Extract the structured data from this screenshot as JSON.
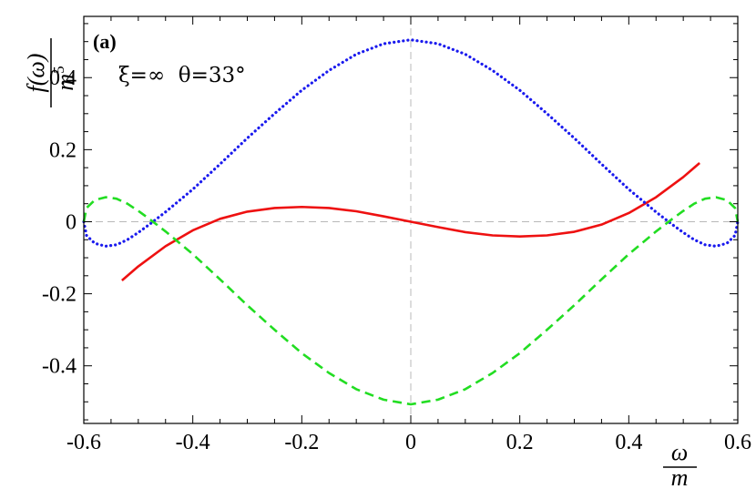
{
  "chart_data": {
    "type": "line",
    "panel_label": "(a)",
    "params_label": "ξ=∞  θ=33°",
    "ylabel_numerator": "f(ω)",
    "ylabel_denominator_base": "m",
    "ylabel_denominator_exp": "5",
    "xlabel_numerator": "ω",
    "xlabel_denominator": "m",
    "xlim": [
      -0.6,
      0.6
    ],
    "ylim": [
      -0.56,
      0.57
    ],
    "x_ticks": [
      -0.6,
      -0.4,
      -0.2,
      0,
      0.2,
      0.4,
      0.6
    ],
    "x_tick_labels": [
      "-0.6",
      "-0.4",
      "-0.2",
      "0",
      "0.2",
      "0.4",
      "0.6"
    ],
    "y_ticks": [
      -0.4,
      -0.2,
      0,
      0.2,
      0.4
    ],
    "y_tick_labels": [
      "-0.4",
      "-0.2",
      "0",
      "0.2",
      "0.4"
    ],
    "grid": false,
    "reference_lines": [
      0
    ],
    "series": [
      {
        "style": "solid",
        "color": "#ee1111",
        "points": [
          [
            -0.53,
            -0.163
          ],
          [
            -0.5,
            -0.124
          ],
          [
            -0.45,
            -0.068
          ],
          [
            -0.4,
            -0.024
          ],
          [
            -0.35,
            0.008
          ],
          [
            -0.3,
            0.028
          ],
          [
            -0.25,
            0.038
          ],
          [
            -0.2,
            0.041
          ],
          [
            -0.15,
            0.038
          ],
          [
            -0.1,
            0.029
          ],
          [
            -0.05,
            0.015
          ],
          [
            0,
            0
          ],
          [
            0.05,
            -0.015
          ],
          [
            0.1,
            -0.029
          ],
          [
            0.15,
            -0.038
          ],
          [
            0.2,
            -0.041
          ],
          [
            0.25,
            -0.038
          ],
          [
            0.3,
            -0.028
          ],
          [
            0.35,
            -0.008
          ],
          [
            0.4,
            0.024
          ],
          [
            0.45,
            0.068
          ],
          [
            0.5,
            0.124
          ],
          [
            0.53,
            0.163
          ]
        ]
      },
      {
        "style": "dotted",
        "color": "#1a1aee",
        "points": [
          [
            -0.6,
            0.0
          ],
          [
            -0.595,
            -0.038
          ],
          [
            -0.58,
            -0.06
          ],
          [
            -0.56,
            -0.068
          ],
          [
            -0.54,
            -0.064
          ],
          [
            -0.52,
            -0.05
          ],
          [
            -0.5,
            -0.03
          ],
          [
            -0.48,
            -0.008
          ],
          [
            -0.45,
            0.027
          ],
          [
            -0.4,
            0.09
          ],
          [
            -0.35,
            0.16
          ],
          [
            -0.3,
            0.232
          ],
          [
            -0.25,
            0.3
          ],
          [
            -0.2,
            0.365
          ],
          [
            -0.15,
            0.42
          ],
          [
            -0.1,
            0.465
          ],
          [
            -0.05,
            0.494
          ],
          [
            0,
            0.505
          ],
          [
            0.05,
            0.494
          ],
          [
            0.1,
            0.465
          ],
          [
            0.15,
            0.42
          ],
          [
            0.2,
            0.365
          ],
          [
            0.25,
            0.3
          ],
          [
            0.3,
            0.232
          ],
          [
            0.35,
            0.16
          ],
          [
            0.4,
            0.09
          ],
          [
            0.45,
            0.027
          ],
          [
            0.48,
            -0.008
          ],
          [
            0.5,
            -0.03
          ],
          [
            0.52,
            -0.05
          ],
          [
            0.54,
            -0.064
          ],
          [
            0.56,
            -0.068
          ],
          [
            0.58,
            -0.06
          ],
          [
            0.595,
            -0.038
          ],
          [
            0.6,
            0.0
          ]
        ]
      },
      {
        "style": "dashed",
        "color": "#22dd22",
        "points": [
          [
            -0.6,
            0.0
          ],
          [
            -0.595,
            0.038
          ],
          [
            -0.58,
            0.06
          ],
          [
            -0.56,
            0.068
          ],
          [
            -0.54,
            0.064
          ],
          [
            -0.52,
            0.05
          ],
          [
            -0.5,
            0.03
          ],
          [
            -0.48,
            0.008
          ],
          [
            -0.45,
            -0.027
          ],
          [
            -0.4,
            -0.09
          ],
          [
            -0.35,
            -0.16
          ],
          [
            -0.3,
            -0.232
          ],
          [
            -0.25,
            -0.3
          ],
          [
            -0.2,
            -0.365
          ],
          [
            -0.15,
            -0.42
          ],
          [
            -0.1,
            -0.465
          ],
          [
            -0.05,
            -0.494
          ],
          [
            0,
            -0.507
          ],
          [
            0.05,
            -0.494
          ],
          [
            0.1,
            -0.465
          ],
          [
            0.15,
            -0.42
          ],
          [
            0.2,
            -0.365
          ],
          [
            0.25,
            -0.3
          ],
          [
            0.3,
            -0.232
          ],
          [
            0.35,
            -0.16
          ],
          [
            0.4,
            -0.09
          ],
          [
            0.45,
            -0.027
          ],
          [
            0.48,
            0.008
          ],
          [
            0.5,
            0.03
          ],
          [
            0.52,
            0.05
          ],
          [
            0.54,
            0.064
          ],
          [
            0.56,
            0.068
          ],
          [
            0.58,
            0.06
          ],
          [
            0.595,
            0.038
          ],
          [
            0.6,
            0.0
          ]
        ]
      }
    ]
  }
}
